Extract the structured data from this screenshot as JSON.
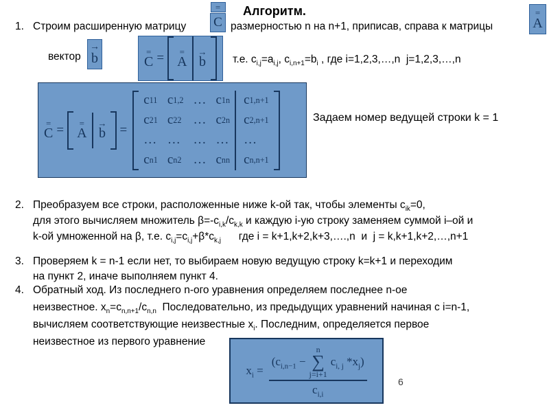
{
  "title": "Алгоритм.",
  "page_number": "6",
  "colors": {
    "box_fill": "#6f9ac9",
    "box_border": "#2e5f99",
    "box_border_dark": "#17365d",
    "math_text": "#17365d",
    "body_text": "#000000"
  },
  "sym": {
    "dbar": "=",
    "arrow": "→",
    "eq": "=",
    "C": "C",
    "A": "A",
    "b": "b"
  },
  "item1": {
    "number": "1.",
    "text_before_c": "Строим расширенную матрицу",
    "text_after_c": "размерностью n на n+1, приписав, справа к матрицы",
    "vector_label": "вектор",
    "te_line": "т.е. c~i,j~=a~i,j~, c~i,n+1~=b~i~ , где i=1,2,3,…,n  j=1,2,3,…,n"
  },
  "matrix_block": {
    "rows": [
      [
        "c~11~",
        "c~1,2~",
        "…",
        "c~1n~",
        "c~1,n+1~"
      ],
      [
        "c~21~",
        "c~22~",
        "…",
        "c~2n~",
        "c~2,n+1~"
      ],
      [
        "…",
        "…",
        "…",
        "…",
        "…"
      ],
      [
        "c~n1~",
        "c~n2~",
        "…",
        "c~nn~",
        "c~n,n+1~"
      ]
    ],
    "side_note": "Задаем номер ведущей строки k = 1"
  },
  "item2": {
    "number": "2.",
    "lines": [
      "Преобразуем все строки, расположенные ниже k-ой так, чтобы элементы c~ik~=0,",
      "для этого вычисляем множитель β=-c~i,k~/c~k,k~ и каждую i-ую строку заменяем суммой i–ой и",
      "k-ой умноженной на β, т.е. c~i,j~=c~i,j~+β*c~k,j~      где i = k+1,k+2,k+3,….,n  и  j = k,k+1,k+2,…,n+1"
    ]
  },
  "item3": {
    "number": "3.",
    "lines": [
      "Проверяем k = n-1 если нет, то выбираем новую ведущую строку k=k+1 и переходим",
      "на пункт 2, иначе выполняем пункт 4."
    ]
  },
  "item4": {
    "number": "4.",
    "lines": [
      "Обратный ход. Из последнего n-ого уравнения определяем последнее n-ое",
      "неизвестное. x~n~=c~n,n+1~/c~n,n~  Последовательно, из предыдущих уравнений начиная с i=n-1,",
      "вычисляем соответствующие неизвестные x~i~. Последним, определяется первое",
      "неизвестное из первого уравнение"
    ]
  },
  "formula": {
    "lhs": "x~i~ =",
    "num_open": "(c~i,n−1~ −",
    "sum_symbol": "∑",
    "sum_upper": "n",
    "sum_lower": "j=i+1",
    "num_close": "c~i, j~ *x~j~)",
    "den": "c~i,i~"
  }
}
